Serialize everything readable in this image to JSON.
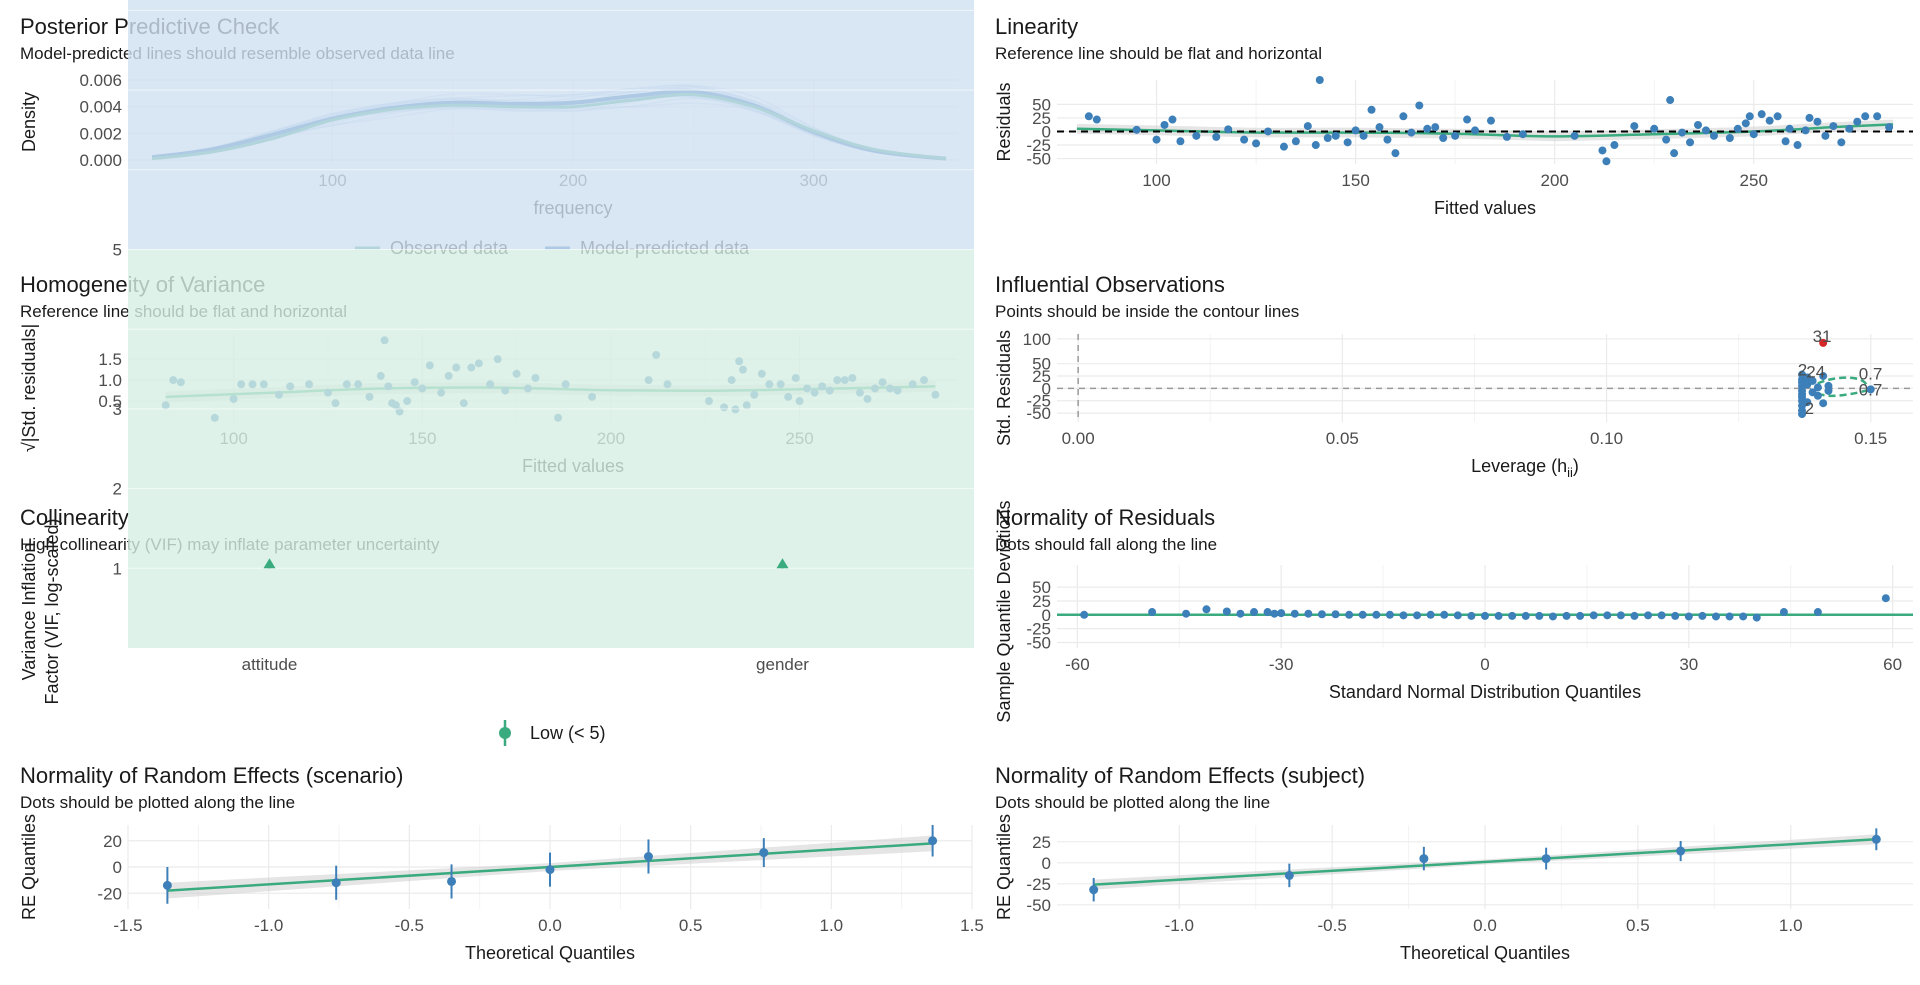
{
  "colors": {
    "green": "#3aaa7f",
    "blue": "#2c6fad",
    "point": "#3d7fb8",
    "red": "#d62728",
    "grid": "#ebebeb",
    "ref": "#000000"
  },
  "panels": {
    "ppc": {
      "title": "Posterior Predictive Check",
      "subtitle": "Model-predicted lines should resemble observed data line",
      "xlabel": "frequency",
      "ylabel": "Density",
      "legend": [
        "Observed data",
        "Model-predicted data"
      ]
    },
    "linearity": {
      "title": "Linearity",
      "subtitle": "Reference line should be flat and horizontal",
      "xlabel": "Fitted values",
      "ylabel": "Residuals"
    },
    "homog": {
      "title": "Homogeneity of Variance",
      "subtitle": "Reference line should be flat and horizontal",
      "xlabel": "Fitted values",
      "ylabel": "√|Std. residuals|"
    },
    "influ": {
      "title": "Influential Observations",
      "subtitle": "Points should be inside the contour lines",
      "xlabel": "Leverage (h",
      "xlabel_sub": "ii",
      "xlabel_end": ")",
      "ylabel": "Std. Residuals",
      "contour_label": "0.7",
      "outlier_labels": [
        "31",
        "2",
        "24",
        "2"
      ]
    },
    "collin": {
      "title": "Collinearity",
      "subtitle": "High collinearity (VIF) may inflate parameter uncertainty",
      "ylabel_line1": "Variance Inflation",
      "ylabel_line2": "Factor (VIF, log-scaled)",
      "legend": [
        "Low (< 5)"
      ]
    },
    "normres": {
      "title": "Normality of Residuals",
      "subtitle": "Dots should fall along the line",
      "xlabel": "Standard Normal Distribution Quantiles",
      "ylabel": "Sample Quantile Deviations"
    },
    "re_scenario": {
      "title": "Normality of Random Effects (scenario)",
      "subtitle": "Dots should be plotted along the line",
      "xlabel": "Theoretical Quantiles",
      "ylabel": "RE Quantiles"
    },
    "re_subject": {
      "title": "Normality of Random Effects (subject)",
      "subtitle": "Dots should be plotted along the line",
      "xlabel": "Theoretical Quantiles",
      "ylabel": "RE Quantiles"
    }
  },
  "chart_data": [
    {
      "id": "ppc",
      "type": "line",
      "xlim": [
        15,
        360
      ],
      "ylim": [
        -0.0003,
        0.006
      ],
      "xticks": [
        100,
        200,
        300
      ],
      "yticks": [
        0.0,
        0.002,
        0.004,
        0.006
      ],
      "ytick_labels": [
        "0.000",
        "0.002",
        "0.004",
        "0.006"
      ],
      "series": [
        {
          "name": "Observed data",
          "x": [
            25,
            50,
            75,
            100,
            125,
            150,
            175,
            200,
            225,
            250,
            275,
            300,
            325,
            355
          ],
          "values": [
            0.0001,
            0.0006,
            0.0016,
            0.003,
            0.0038,
            0.0041,
            0.004,
            0.004,
            0.0045,
            0.0049,
            0.004,
            0.0022,
            0.0008,
            0.0001
          ]
        },
        {
          "name": "Model-predicted data",
          "x": [
            25,
            50,
            75,
            100,
            125,
            150,
            175,
            200,
            225,
            250,
            275,
            300,
            325,
            355
          ],
          "values": [
            0.0002,
            0.0008,
            0.0019,
            0.0031,
            0.0039,
            0.0043,
            0.0042,
            0.0043,
            0.0048,
            0.0051,
            0.0041,
            0.0021,
            0.0007,
            0.0001
          ]
        }
      ]
    },
    {
      "id": "linearity",
      "type": "scatter",
      "xlim": [
        75,
        290
      ],
      "ylim": [
        -60,
        95
      ],
      "xticks": [
        100,
        150,
        200,
        250
      ],
      "yticks": [
        -50,
        -25,
        0,
        25,
        50
      ],
      "points": [
        [
          83,
          28
        ],
        [
          85,
          22
        ],
        [
          95,
          3
        ],
        [
          100,
          -15
        ],
        [
          102,
          12
        ],
        [
          104,
          22
        ],
        [
          106,
          -18
        ],
        [
          110,
          -8
        ],
        [
          115,
          -10
        ],
        [
          118,
          4
        ],
        [
          122,
          -15
        ],
        [
          125,
          -22
        ],
        [
          128,
          0
        ],
        [
          132,
          -28
        ],
        [
          135,
          -18
        ],
        [
          138,
          10
        ],
        [
          140,
          -25
        ],
        [
          141,
          95
        ],
        [
          143,
          -12
        ],
        [
          145,
          -8
        ],
        [
          148,
          -20
        ],
        [
          150,
          2
        ],
        [
          152,
          -8
        ],
        [
          154,
          40
        ],
        [
          156,
          8
        ],
        [
          158,
          -15
        ],
        [
          160,
          -40
        ],
        [
          162,
          28
        ],
        [
          164,
          -2
        ],
        [
          166,
          48
        ],
        [
          168,
          5
        ],
        [
          170,
          8
        ],
        [
          172,
          -12
        ],
        [
          175,
          -8
        ],
        [
          178,
          22
        ],
        [
          180,
          2
        ],
        [
          184,
          20
        ],
        [
          188,
          -10
        ],
        [
          192,
          -5
        ],
        [
          205,
          -8
        ],
        [
          212,
          -35
        ],
        [
          215,
          -25
        ],
        [
          213,
          -55
        ],
        [
          220,
          10
        ],
        [
          225,
          5
        ],
        [
          228,
          -15
        ],
        [
          229,
          58
        ],
        [
          230,
          -40
        ],
        [
          232,
          -2
        ],
        [
          234,
          -20
        ],
        [
          236,
          12
        ],
        [
          238,
          2
        ],
        [
          240,
          -8
        ],
        [
          244,
          -12
        ],
        [
          246,
          5
        ],
        [
          248,
          15
        ],
        [
          249,
          28
        ],
        [
          250,
          -5
        ],
        [
          252,
          32
        ],
        [
          254,
          20
        ],
        [
          256,
          28
        ],
        [
          258,
          -18
        ],
        [
          259,
          5
        ],
        [
          261,
          -25
        ],
        [
          263,
          2
        ],
        [
          264,
          25
        ],
        [
          266,
          18
        ],
        [
          268,
          -8
        ],
        [
          270,
          10
        ],
        [
          272,
          -20
        ],
        [
          274,
          5
        ],
        [
          276,
          18
        ],
        [
          278,
          28
        ],
        [
          281,
          28
        ],
        [
          284,
          8
        ]
      ],
      "smooth": {
        "x": [
          80,
          100,
          125,
          150,
          175,
          200,
          225,
          250,
          270,
          285
        ],
        "y": [
          5,
          2,
          -2,
          -2,
          -4,
          -9,
          -5,
          0,
          8,
          13
        ]
      },
      "ref_y": 0
    },
    {
      "id": "homog",
      "type": "scatter",
      "xlim": [
        72,
        292
      ],
      "ylim": [
        0.0,
        2.1
      ],
      "xticks": [
        100,
        150,
        200,
        250
      ],
      "yticks": [
        0.5,
        1.0,
        1.5
      ],
      "points": [
        [
          82,
          0.4
        ],
        [
          84,
          1.0
        ],
        [
          86,
          0.95
        ],
        [
          95,
          0.1
        ],
        [
          100,
          0.55
        ],
        [
          102,
          0.9
        ],
        [
          105,
          0.9
        ],
        [
          108,
          0.9
        ],
        [
          112,
          0.65
        ],
        [
          115,
          0.85
        ],
        [
          120,
          0.9
        ],
        [
          125,
          0.7
        ],
        [
          127,
          0.45
        ],
        [
          130,
          0.9
        ],
        [
          133,
          0.9
        ],
        [
          136,
          0.6
        ],
        [
          139,
          1.1
        ],
        [
          140,
          1.95
        ],
        [
          141,
          0.85
        ],
        [
          142,
          0.45
        ],
        [
          143,
          0.4
        ],
        [
          144,
          0.25
        ],
        [
          146,
          0.5
        ],
        [
          148,
          0.95
        ],
        [
          150,
          0.8
        ],
        [
          152,
          1.35
        ],
        [
          155,
          0.7
        ],
        [
          157,
          1.1
        ],
        [
          159,
          1.3
        ],
        [
          161,
          0.45
        ],
        [
          163,
          1.3
        ],
        [
          165,
          1.4
        ],
        [
          168,
          0.9
        ],
        [
          170,
          1.5
        ],
        [
          172,
          0.75
        ],
        [
          175,
          1.15
        ],
        [
          178,
          0.8
        ],
        [
          180,
          1.05
        ],
        [
          186,
          0.1
        ],
        [
          188,
          0.9
        ],
        [
          195,
          0.6
        ],
        [
          210,
          1.0
        ],
        [
          212,
          1.6
        ],
        [
          215,
          0.9
        ],
        [
          226,
          0.5
        ],
        [
          230,
          0.35
        ],
        [
          232,
          1.0
        ],
        [
          233,
          0.3
        ],
        [
          234,
          1.45
        ],
        [
          235,
          1.25
        ],
        [
          236,
          0.4
        ],
        [
          238,
          0.65
        ],
        [
          240,
          1.15
        ],
        [
          242,
          0.9
        ],
        [
          245,
          0.9
        ],
        [
          247,
          0.6
        ],
        [
          249,
          1.05
        ],
        [
          250,
          0.5
        ],
        [
          252,
          0.8
        ],
        [
          254,
          0.7
        ],
        [
          256,
          0.85
        ],
        [
          258,
          0.75
        ],
        [
          260,
          1.0
        ],
        [
          262,
          1.0
        ],
        [
          264,
          1.05
        ],
        [
          266,
          0.7
        ],
        [
          268,
          0.55
        ],
        [
          270,
          0.8
        ],
        [
          272,
          0.95
        ],
        [
          274,
          0.8
        ],
        [
          276,
          0.75
        ],
        [
          280,
          0.9
        ],
        [
          283,
          1.0
        ],
        [
          286,
          0.65
        ]
      ],
      "smooth": {
        "x": [
          82,
          110,
          140,
          170,
          200,
          230,
          260,
          286
        ],
        "y": [
          0.6,
          0.7,
          0.8,
          0.82,
          0.76,
          0.75,
          0.8,
          0.85
        ]
      }
    },
    {
      "id": "influ",
      "type": "scatter",
      "xlim": [
        -0.004,
        0.158
      ],
      "ylim": [
        -68,
        110
      ],
      "xticks": [
        0.0,
        0.05,
        0.1,
        0.15
      ],
      "xtick_labels": [
        "0.00",
        "0.05",
        "0.10",
        "0.15"
      ],
      "yticks": [
        -50,
        -25,
        0,
        25,
        50,
        100
      ],
      "ref_x": 0,
      "ref_y": 0,
      "points": [
        [
          0.137,
          28
        ],
        [
          0.137,
          18
        ],
        [
          0.137,
          12
        ],
        [
          0.137,
          5
        ],
        [
          0.137,
          -5
        ],
        [
          0.137,
          -12
        ],
        [
          0.137,
          -18
        ],
        [
          0.137,
          -25
        ],
        [
          0.137,
          -35
        ],
        [
          0.137,
          -45
        ],
        [
          0.137,
          -52
        ],
        [
          0.138,
          22
        ],
        [
          0.138,
          8
        ],
        [
          0.138,
          -28
        ],
        [
          0.139,
          15
        ],
        [
          0.139,
          -8
        ],
        [
          0.14,
          2
        ],
        [
          0.14,
          -15
        ],
        [
          0.141,
          25
        ],
        [
          0.141,
          -30
        ],
        [
          0.142,
          5
        ],
        [
          0.142,
          -5
        ],
        [
          0.15,
          -2
        ]
      ],
      "outliers": [
        [
          0.141,
          92
        ]
      ]
    },
    {
      "id": "collin",
      "type": "bar",
      "categories": [
        "attitude",
        "gender"
      ],
      "values": [
        1.0,
        1.0
      ],
      "yscale": "log",
      "ylim": [
        1,
        11
      ],
      "yticks": [
        1,
        2,
        3,
        5,
        10
      ]
    },
    {
      "id": "normres",
      "type": "scatter",
      "xlim": [
        -63,
        63
      ],
      "ylim": [
        -60,
        90
      ],
      "xticks": [
        -60,
        -30,
        0,
        30,
        60
      ],
      "yticks": [
        -50,
        -25,
        0,
        25,
        50
      ],
      "ref_y": 0,
      "points": [
        [
          -59,
          0
        ],
        [
          -49,
          5
        ],
        [
          -44,
          2
        ],
        [
          -41,
          10
        ],
        [
          -38,
          6
        ],
        [
          -36,
          2
        ],
        [
          -34,
          5
        ],
        [
          -32,
          5
        ],
        [
          -31,
          2
        ],
        [
          -30,
          3
        ],
        [
          -28,
          2
        ],
        [
          -26,
          2
        ],
        [
          -24,
          1
        ],
        [
          -22,
          1
        ],
        [
          -20,
          0
        ],
        [
          -18,
          0
        ],
        [
          -16,
          0
        ],
        [
          -14,
          0
        ],
        [
          -12,
          -1
        ],
        [
          -10,
          -1
        ],
        [
          -8,
          0
        ],
        [
          -6,
          0
        ],
        [
          -4,
          -1
        ],
        [
          -2,
          -2
        ],
        [
          0,
          -2
        ],
        [
          2,
          -2
        ],
        [
          4,
          -2
        ],
        [
          6,
          -2
        ],
        [
          8,
          -2
        ],
        [
          10,
          -3
        ],
        [
          12,
          -2
        ],
        [
          14,
          -2
        ],
        [
          16,
          -1
        ],
        [
          18,
          -1
        ],
        [
          20,
          -1
        ],
        [
          22,
          -2
        ],
        [
          24,
          -1
        ],
        [
          26,
          -1
        ],
        [
          28,
          -2
        ],
        [
          30,
          -3
        ],
        [
          32,
          -2
        ],
        [
          34,
          -3
        ],
        [
          36,
          -3
        ],
        [
          38,
          -3
        ],
        [
          40,
          -5
        ],
        [
          44,
          5
        ],
        [
          49,
          5
        ],
        [
          59,
          30
        ]
      ]
    },
    {
      "id": "re_scenario",
      "type": "scatter",
      "xlim": [
        -1.5,
        1.5
      ],
      "ylim": [
        -32,
        32
      ],
      "xticks": [
        -1.5,
        -1.0,
        -0.5,
        0.0,
        0.5,
        1.0,
        1.5
      ],
      "xtick_labels": [
        "-1.5",
        "-1.0",
        "-0.5",
        "0.0",
        "0.5",
        "1.0",
        "1.5"
      ],
      "yticks": [
        -20,
        0,
        20
      ],
      "points": [
        [
          -1.36,
          -14
        ],
        [
          -0.76,
          -12
        ],
        [
          -0.35,
          -11
        ],
        [
          0.0,
          -2
        ],
        [
          0.35,
          8
        ],
        [
          0.76,
          11
        ],
        [
          1.36,
          20
        ]
      ],
      "error": [
        14,
        13,
        13,
        13,
        13,
        11,
        12
      ],
      "fit": {
        "x": [
          -1.36,
          1.36
        ],
        "y": [
          -18,
          18
        ]
      }
    },
    {
      "id": "re_subject",
      "type": "scatter",
      "xlim": [
        -1.4,
        1.4
      ],
      "ylim": [
        -55,
        45
      ],
      "xticks": [
        -1.0,
        -0.5,
        0.0,
        0.5,
        1.0
      ],
      "xtick_labels": [
        "-1.0",
        "-0.5",
        "0.0",
        "0.5",
        "1.0"
      ],
      "yticks": [
        -50,
        -25,
        0,
        25
      ],
      "points": [
        [
          -1.28,
          -32
        ],
        [
          -0.64,
          -15
        ],
        [
          -0.2,
          5
        ],
        [
          0.2,
          5
        ],
        [
          0.64,
          14
        ],
        [
          1.28,
          28
        ]
      ],
      "error": [
        14,
        14,
        14,
        13,
        12,
        13
      ],
      "fit": {
        "x": [
          -1.28,
          1.28
        ],
        "y": [
          -26,
          28
        ]
      }
    }
  ]
}
